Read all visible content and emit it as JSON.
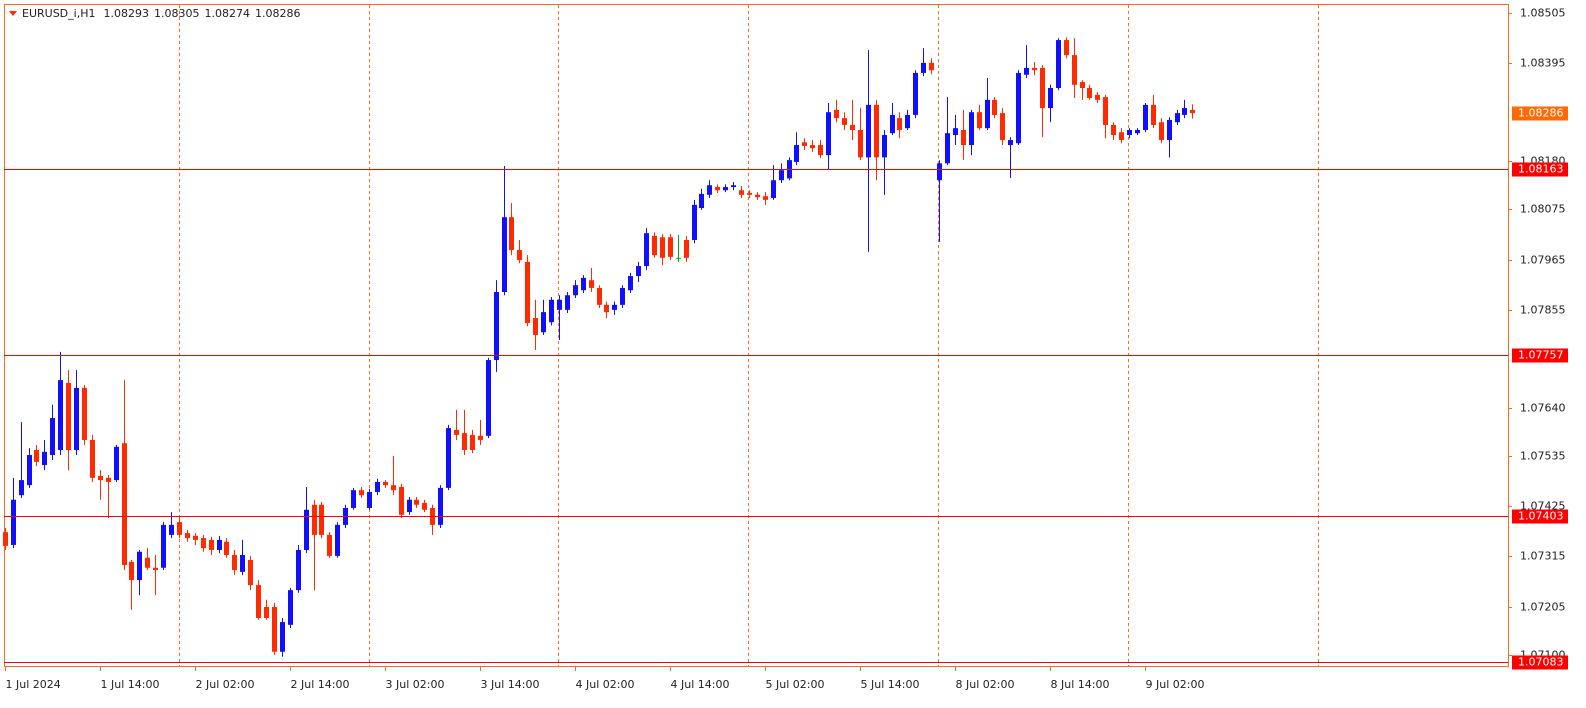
{
  "chart_data": {
    "type": "candlestick",
    "title": "EURUSD_i,H1",
    "categories": [
      "1 Jul 2024",
      null,
      null,
      null,
      null,
      null,
      null,
      null,
      null,
      null,
      null,
      null,
      "1 Jul 14:00",
      null,
      null,
      null,
      null,
      null,
      null,
      null,
      null,
      null,
      null,
      null,
      "2 Jul 02:00",
      null,
      null,
      null,
      null,
      null,
      null,
      null,
      null,
      null,
      null,
      null,
      "2 Jul 14:00",
      null,
      null,
      null,
      null,
      null,
      null,
      null,
      null,
      null,
      null,
      null,
      "3 Jul 02:00",
      null,
      null,
      null,
      null,
      null,
      null,
      null,
      null,
      null,
      null,
      null,
      "3 Jul 14:00",
      null,
      null,
      null,
      null,
      null,
      null,
      null,
      null,
      null,
      null,
      null,
      "4 Jul 02:00",
      null,
      null,
      null,
      null,
      null,
      null,
      null,
      null,
      null,
      null,
      null,
      "4 Jul 14:00",
      null,
      null,
      null,
      null,
      null,
      null,
      null,
      null,
      null,
      null,
      null,
      "5 Jul 02:00",
      null,
      null,
      null,
      null,
      null,
      null,
      null,
      null,
      null,
      null,
      null,
      "5 Jul 14:00",
      null,
      null,
      null,
      null,
      null,
      null,
      null,
      null,
      null,
      null,
      null,
      "8 Jul 02:00",
      null,
      null,
      null,
      null,
      null,
      null,
      null,
      null,
      null,
      null,
      null,
      "8 Jul 14:00",
      null,
      null,
      null,
      null,
      null,
      null,
      null,
      null,
      null,
      null,
      null,
      "9 Jul 02:00",
      null,
      null,
      null,
      null,
      null,
      null
    ],
    "open": [
      1.07368,
      1.0734,
      1.07449,
      1.07471,
      1.07548,
      1.07515,
      1.07537,
      1.07548,
      1.07695,
      1.07548,
      1.07684,
      1.0757,
      1.07491,
      1.07487,
      1.07482,
      1.07563,
      1.07303,
      1.07263,
      1.07312,
      1.0729,
      1.0729,
      1.07362,
      1.0739,
      1.07366,
      1.0736,
      1.07355,
      1.07351,
      1.07329,
      1.07347,
      1.07318,
      1.07281,
      1.07307,
      1.07252,
      1.07204,
      1.07204,
      1.07106,
      1.07165,
      1.07241,
      1.07329,
      1.07428,
      1.07428,
      1.07362,
      1.07316,
      1.07384,
      1.07421,
      1.0746,
      1.07421,
      1.07456,
      1.07478,
      1.07471,
      1.07467,
      1.07412,
      1.07439,
      1.07432,
      1.07421,
      1.07384,
      1.07465,
      1.07592,
      1.07585,
      1.07581,
      1.07579,
      1.07579,
      1.07745,
      1.07894,
      1.08058,
      1.07986,
      1.0796,
      1.07837,
      1.07806,
      1.07828,
      1.07855,
      1.07855,
      1.07887,
      1.07898,
      1.0792,
      1.07903,
      1.07866,
      1.07855,
      1.07866,
      1.07898,
      1.07929,
      1.07951,
      1.08017,
      1.08014,
      1.08014,
      1.07969,
      1.08008,
      1.08008,
      1.08078,
      1.08107,
      1.08124,
      1.08117,
      1.08124,
      1.08117,
      1.08111,
      1.08107,
      1.08104,
      1.081,
      1.08139,
      1.08143,
      1.08179,
      1.08222,
      1.08216,
      1.08216,
      1.08194,
      1.08293,
      1.08275,
      1.0826,
      1.08249,
      1.08189,
      1.08304,
      1.08189,
      1.08242,
      1.08275,
      1.08253,
      1.08282,
      1.08374,
      1.08396,
      1.08139,
      1.08176,
      1.08238,
      1.08249,
      1.08216,
      1.08288,
      1.08253,
      1.08315,
      1.08286,
      1.08216,
      1.0822,
      1.0837,
      1.08385,
      1.08385,
      1.08297,
      1.08341,
      1.08446,
      1.08413,
      1.08354,
      1.08341,
      1.08326,
      1.08321,
      1.0826,
      1.08244,
      1.08238,
      1.08242,
      1.08249,
      1.08304,
      1.08266,
      1.08227,
      1.08266,
      1.08282,
      1.08293
    ],
    "high": [
      1.07377,
      1.07487,
      1.07609,
      1.07552,
      1.07559,
      1.0757,
      1.07647,
      1.07763,
      1.07723,
      1.07723,
      1.0769,
      1.07581,
      1.07504,
      1.07493,
      1.07559,
      1.07701,
      1.07307,
      1.07329,
      1.07333,
      1.07318,
      1.0739,
      1.07412,
      1.07399,
      1.07373,
      1.07366,
      1.07362,
      1.07358,
      1.0736,
      1.07355,
      1.07329,
      1.07351,
      1.07316,
      1.07263,
      1.0722,
      1.07213,
      1.0718,
      1.07246,
      1.0734,
      1.07467,
      1.07439,
      1.07434,
      1.07368,
      1.0739,
      1.07428,
      1.07465,
      1.07467,
      1.07463,
      1.07485,
      1.07482,
      1.07535,
      1.07474,
      1.07445,
      1.07445,
      1.07439,
      1.07428,
      1.07471,
      1.07603,
      1.07636,
      1.07636,
      1.07592,
      1.07614,
      1.0775,
      1.0792,
      1.0817,
      1.08089,
      1.08008,
      1.07975,
      1.07877,
      1.07877,
      1.07883,
      1.07887,
      1.07894,
      1.0792,
      1.07931,
      1.07947,
      1.07909,
      1.07873,
      1.07873,
      1.07909,
      1.07936,
      1.0796,
      1.08034,
      1.08025,
      1.08021,
      1.08021,
      1.08019,
      1.08017,
      1.08096,
      1.0812,
      1.08139,
      1.0813,
      1.0813,
      1.08135,
      1.08126,
      1.08117,
      1.08113,
      1.08113,
      1.08172,
      1.08176,
      1.08189,
      1.08244,
      1.08231,
      1.08227,
      1.08227,
      1.08308,
      1.08315,
      1.08288,
      1.08315,
      1.08297,
      1.08424,
      1.08315,
      1.08249,
      1.08308,
      1.08288,
      1.08293,
      1.0838,
      1.08428,
      1.08406,
      1.08183,
      1.08321,
      1.08282,
      1.08293,
      1.08293,
      1.08304,
      1.08363,
      1.08321,
      1.08297,
      1.08233,
      1.0838,
      1.08435,
      1.08398,
      1.08391,
      1.08348,
      1.0845,
      1.08452,
      1.0845,
      1.08358,
      1.08348,
      1.08332,
      1.08326,
      1.08266,
      1.08253,
      1.08253,
      1.08253,
      1.08308,
      1.08326,
      1.08275,
      1.08277,
      1.08293,
      1.08315,
      1.08305
    ],
    "low": [
      1.07329,
      1.07333,
      1.07443,
      1.07465,
      1.07513,
      1.07504,
      1.07526,
      1.07537,
      1.07504,
      1.07537,
      1.07559,
      1.07478,
      1.07439,
      1.07399,
      1.07478,
      1.07285,
      1.07198,
      1.0723,
      1.07285,
      1.0723,
      1.07285,
      1.07355,
      1.07355,
      1.07347,
      1.0734,
      1.07325,
      1.07318,
      1.07322,
      1.07312,
      1.07274,
      1.07274,
      1.07241,
      1.07176,
      1.07176,
      1.07099,
      1.07095,
      1.07158,
      1.07235,
      1.07322,
      1.07241,
      1.07355,
      1.07312,
      1.07312,
      1.07377,
      1.07417,
      1.07443,
      1.07417,
      1.07449,
      1.07465,
      1.07449,
      1.07399,
      1.07406,
      1.07421,
      1.07412,
      1.07362,
      1.07377,
      1.0746,
      1.0757,
      1.07537,
      1.07541,
      1.07559,
      1.07574,
      1.07719,
      1.07887,
      1.07975,
      1.07957,
      1.07819,
      1.07767,
      1.078,
      1.07821,
      1.07789,
      1.07848,
      1.07881,
      1.07892,
      1.07894,
      1.07859,
      1.07837,
      1.07844,
      1.07859,
      1.07892,
      1.07916,
      1.07942,
      1.07969,
      1.07953,
      1.07964,
      1.0796,
      1.0796,
      1.08001,
      1.08074,
      1.081,
      1.08111,
      1.08113,
      1.08117,
      1.081,
      1.081,
      1.08096,
      1.08085,
      1.08096,
      1.08133,
      1.08139,
      1.08172,
      1.08205,
      1.08201,
      1.08187,
      1.08161,
      1.08266,
      1.08249,
      1.08227,
      1.08183,
      1.07982,
      1.08139,
      1.08107,
      1.08238,
      1.08231,
      1.08249,
      1.08275,
      1.08367,
      1.08371,
      1.08004,
      1.08172,
      1.08216,
      1.08183,
      1.08194,
      1.08249,
      1.08249,
      1.08275,
      1.08216,
      1.08144,
      1.08216,
      1.08363,
      1.08369,
      1.08233,
      1.08266,
      1.08336,
      1.08406,
      1.08319,
      1.08315,
      1.08315,
      1.08308,
      1.08231,
      1.08227,
      1.0822,
      1.08231,
      1.08238,
      1.08244,
      1.08253,
      1.0822,
      1.08189,
      1.0826,
      1.08275,
      1.08274
    ],
    "close": [
      1.07338,
      1.07439,
      1.07482,
      1.07537,
      1.07522,
      1.07544,
      1.07618,
      1.07701,
      1.07548,
      1.07684,
      1.0757,
      1.07487,
      1.07482,
      1.07478,
      1.07555,
      1.07296,
      1.07263,
      1.07325,
      1.0729,
      1.07285,
      1.07384,
      1.07384,
      1.07362,
      1.07355,
      1.07351,
      1.07333,
      1.07329,
      1.07351,
      1.07318,
      1.07285,
      1.07318,
      1.07252,
      1.0718,
      1.0718,
      1.07106,
      1.07171,
      1.07241,
      1.07329,
      1.07417,
      1.07362,
      1.07362,
      1.07316,
      1.07384,
      1.07421,
      1.0746,
      1.07449,
      1.07456,
      1.07478,
      1.07471,
      1.0746,
      1.07406,
      1.07439,
      1.07428,
      1.07417,
      1.07384,
      1.07465,
      1.07596,
      1.07581,
      1.07548,
      1.07548,
      1.0757,
      1.07745,
      1.07894,
      1.08058,
      1.07986,
      1.07964,
      1.07826,
      1.078,
      1.0785,
      1.07877,
      1.07877,
      1.07887,
      1.07909,
      1.07925,
      1.07903,
      1.07866,
      1.0785,
      1.07866,
      1.07903,
      1.07929,
      1.07951,
      1.08023,
      1.07975,
      1.07969,
      1.07971,
      1.07969,
      1.07969,
      1.08085,
      1.08109,
      1.08128,
      1.08117,
      1.08124,
      1.08128,
      1.08107,
      1.08107,
      1.08102,
      1.08096,
      1.08139,
      1.08161,
      1.08183,
      1.08216,
      1.08214,
      1.08209,
      1.08194,
      1.08288,
      1.08275,
      1.0826,
      1.08249,
      1.08189,
      1.08304,
      1.08189,
      1.08238,
      1.08282,
      1.08249,
      1.08282,
      1.08374,
      1.08396,
      1.0838,
      1.08176,
      1.08242,
      1.08253,
      1.08216,
      1.08288,
      1.08253,
      1.08315,
      1.08282,
      1.08227,
      1.08227,
      1.08374,
      1.08385,
      1.0838,
      1.08297,
      1.08341,
      1.08446,
      1.08413,
      1.08348,
      1.08341,
      1.08319,
      1.08315,
      1.0826,
      1.08238,
      1.08227,
      1.08249,
      1.08249,
      1.08304,
      1.0826,
      1.08227,
      1.08271,
      1.08286,
      1.08297,
      1.08286
    ],
    "up_color": "#1010ff",
    "down_color": "#ff2a00",
    "doji_color": "#00b000",
    "ylim": [
      1.07077,
      1.08525
    ],
    "yticks": [
      1.08505,
      1.08395,
      {
        "value": 1.0818,
        "label": "1.08180"
      },
      1.08075,
      1.07965,
      1.07855,
      {
        "value": 1.0764,
        "label": "1.07640"
      },
      1.07535,
      1.07425,
      1.07315,
      1.07205,
      {
        "value": 1.071,
        "label": "1.07100"
      }
    ],
    "price_lines": [
      1.08163,
      1.07757,
      1.07403,
      1.07083
    ],
    "price_line_color": "#ff0000",
    "bid_color": "#ff6a00"
  }
}
